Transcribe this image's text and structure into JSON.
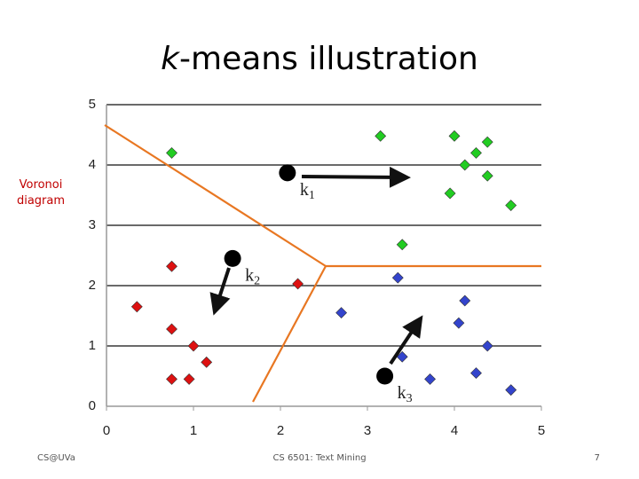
{
  "chart_data": {
    "type": "scatter",
    "title_prefix": "k",
    "title": "-means illustration",
    "annotation": "Voronoi diagram",
    "xlim": [
      0,
      5
    ],
    "ylim": [
      0,
      5
    ],
    "xticks": [
      0,
      1,
      2,
      3,
      4,
      5
    ],
    "yticks": [
      0,
      1,
      2,
      3,
      4,
      5
    ],
    "grid": true,
    "series": [
      {
        "color": "#22cc22",
        "x": [
          0.75,
          3.15,
          4.0,
          4.38,
          4.25,
          4.12,
          4.38,
          3.95,
          4.65,
          3.4
        ],
        "values": [
          4.2,
          4.48,
          4.48,
          4.38,
          4.2,
          4.0,
          3.82,
          3.53,
          3.33,
          2.68
        ]
      },
      {
        "color": "#dd1111",
        "x": [
          0.75,
          2.2,
          0.35,
          0.75,
          1.0,
          1.15,
          0.75,
          0.95
        ],
        "values": [
          2.32,
          2.03,
          1.65,
          1.28,
          1.0,
          0.73,
          0.45,
          0.45
        ]
      },
      {
        "color": "#3344cc",
        "x": [
          3.35,
          4.12,
          2.7,
          4.05,
          4.38,
          3.4,
          3.72,
          4.25,
          4.65
        ],
        "values": [
          2.13,
          1.75,
          1.55,
          1.38,
          1.0,
          0.82,
          0.45,
          0.55,
          0.27
        ]
      }
    ],
    "centroids": {
      "color": "#000000",
      "x": [
        2.08,
        1.45,
        3.2
      ],
      "values": [
        3.87,
        2.45,
        0.5
      ],
      "labels": [
        "k",
        "k",
        "k"
      ],
      "subscripts": [
        "1",
        "2",
        "3"
      ]
    }
  },
  "footer": {
    "left": "CS@UVa",
    "center": "CS 6501: Text Mining",
    "page": "7"
  }
}
